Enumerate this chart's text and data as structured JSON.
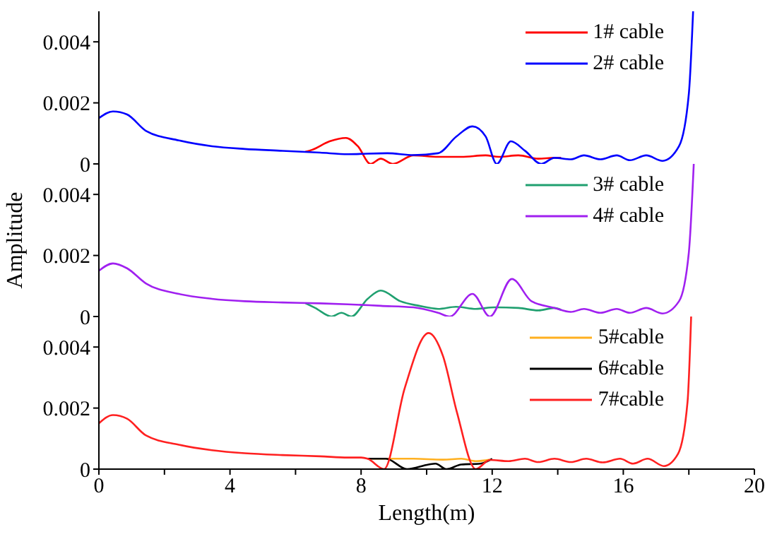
{
  "chart_data": [
    {
      "type": "line",
      "xlim": [
        0,
        20
      ],
      "ylim": [
        0,
        0.005
      ],
      "yticks": [
        0,
        0.002,
        0.004
      ],
      "tick_labels": "y",
      "legend": "top right",
      "series": [
        {
          "name": "1# cable",
          "color": "#ff0000",
          "x": [
            6.3,
            6.5,
            7.04,
            7.54,
            7.9,
            8.29,
            8.6,
            8.97,
            9.6,
            10.35,
            11.06,
            11.8,
            12.2,
            12.8,
            13.4,
            13.9,
            14.1
          ],
          "values": [
            0.0004,
            0.00046,
            0.00074,
            0.00085,
            0.00058,
            0,
            0.00017,
            0,
            0.00028,
            0.00023,
            0.00023,
            0.00028,
            0.00023,
            0.00028,
            0.00017,
            0.0002,
            0.0002
          ]
        },
        {
          "name": "2# cable",
          "color": "#0000ff",
          "x": [
            0,
            0.43,
            0.86,
            1.44,
            2.44,
            3.45,
            4.45,
            5.6,
            6.75,
            7.6,
            8.8,
            9.6,
            10.35,
            10.9,
            11.4,
            11.8,
            12.14,
            12.57,
            13.0,
            13.5,
            13.9,
            14.4,
            14.8,
            15.3,
            15.8,
            16.2,
            16.7,
            17.2,
            17.7,
            18.0,
            18.13
          ],
          "values": [
            0.0015,
            0.00172,
            0.00162,
            0.00108,
            0.00077,
            0.00058,
            0.00049,
            0.00043,
            0.00037,
            0.00032,
            0.00035,
            0.00029,
            0.00035,
            0.00089,
            0.00123,
            0.0009,
            0,
            0.00074,
            0.00043,
            0,
            0.0002,
            0.00015,
            0.00028,
            0.00015,
            0.00028,
            0.00012,
            0.00028,
            0.0001,
            0.00058,
            0.0023,
            0.005
          ]
        }
      ]
    },
    {
      "type": "line",
      "ylabel": "Amplitude",
      "xlim": [
        0,
        20
      ],
      "ylim": [
        0,
        0.005
      ],
      "yticks": [
        0,
        0.002,
        0.004
      ],
      "tick_labels": "y",
      "legend": "top right",
      "series": [
        {
          "name": "3# cable",
          "color": "#20a070",
          "x": [
            6.3,
            6.6,
            7.1,
            7.4,
            7.7,
            8.2,
            8.6,
            9.2,
            9.77,
            10.35,
            10.9,
            11.5,
            12.07,
            12.8,
            13.4,
            13.9,
            14.1
          ],
          "values": [
            0.00044,
            0.00028,
            0,
            0.00012,
            0,
            0.00058,
            0.00085,
            0.0005,
            0.00035,
            0.00025,
            0.00032,
            0.00025,
            0.0003,
            0.00028,
            0.0002,
            0.00028,
            0.00022
          ]
        },
        {
          "name": "4# cable",
          "color": "#a020f0",
          "x": [
            0,
            0.43,
            0.86,
            1.44,
            2.44,
            3.45,
            4.45,
            5.6,
            6.75,
            7.6,
            8.6,
            9.6,
            10.35,
            10.7,
            11.4,
            11.93,
            12.6,
            13.2,
            13.9,
            14.4,
            14.8,
            15.3,
            15.8,
            16.2,
            16.7,
            17.2,
            17.7,
            18.0,
            18.15
          ],
          "values": [
            0.0015,
            0.00174,
            0.00158,
            0.00108,
            0.00074,
            0.00058,
            0.0005,
            0.00046,
            0.00043,
            0.0004,
            0.00035,
            0.0003,
            0.00012,
            0,
            0.00074,
            0,
            0.00123,
            0.0005,
            0.00028,
            0.00015,
            0.00025,
            0.00012,
            0.00025,
            0.00012,
            0.00028,
            0.0001,
            0.0005,
            0.0021,
            0.005
          ]
        }
      ]
    },
    {
      "type": "line",
      "xlabel": "Length(m)",
      "xlim": [
        0,
        20
      ],
      "xticks": [
        0,
        {
          "value": 2,
          "label": null
        },
        4,
        {
          "value": 6,
          "label": null
        },
        8,
        {
          "value": 10,
          "label": null
        },
        12,
        {
          "value": 14,
          "label": null
        },
        16,
        {
          "value": 18,
          "label": null
        },
        20
      ],
      "ylim": [
        0,
        0.005
      ],
      "yticks": [
        0,
        0.002,
        0.004
      ],
      "legend": "top right",
      "series": [
        {
          "name": "5#cable",
          "color": "#ffb020",
          "x": [
            8.2,
            8.5,
            9.6,
            10.5,
            11.06,
            11.5,
            11.93
          ],
          "values": [
            0.00034,
            0.00034,
            0.00034,
            0.00031,
            0.00034,
            0.00026,
            0.00031
          ]
        },
        {
          "name": "6#cable",
          "color": "#000000",
          "x": [
            8.2,
            8.76,
            9.4,
            10.06,
            10.27,
            10.6,
            11.06,
            11.64,
            12.0
          ],
          "values": [
            0.00034,
            0.00034,
            0,
            0.00015,
            0.00018,
            0,
            0.00015,
            0.00018,
            0.00034
          ]
        },
        {
          "name": "7#cable",
          "color": "#ff2020",
          "x": [
            0,
            0.43,
            0.86,
            1.44,
            2.44,
            3.45,
            4.45,
            5.6,
            6.75,
            7.6,
            8.0,
            8.2,
            8.7,
            9.33,
            10.06,
            10.5,
            10.92,
            11.5,
            11.93,
            12.5,
            13.0,
            13.4,
            13.9,
            14.4,
            14.87,
            15.37,
            15.9,
            16.3,
            16.74,
            17.24,
            17.67,
            17.96,
            18.07
          ],
          "values": [
            0.0015,
            0.00177,
            0.00165,
            0.0011,
            0.0008,
            0.00062,
            0.00052,
            0.00046,
            0.00042,
            0.00038,
            0.00038,
            0.00034,
            0,
            0.00265,
            0.00446,
            0.0037,
            0.00188,
            0,
            0.0003,
            0.00026,
            0.00034,
            0.00023,
            0.00034,
            0.00023,
            0.00034,
            0.00022,
            0.00034,
            0.00018,
            0.00034,
            0.0001,
            0.0005,
            0.0022,
            0.005
          ]
        }
      ]
    }
  ]
}
